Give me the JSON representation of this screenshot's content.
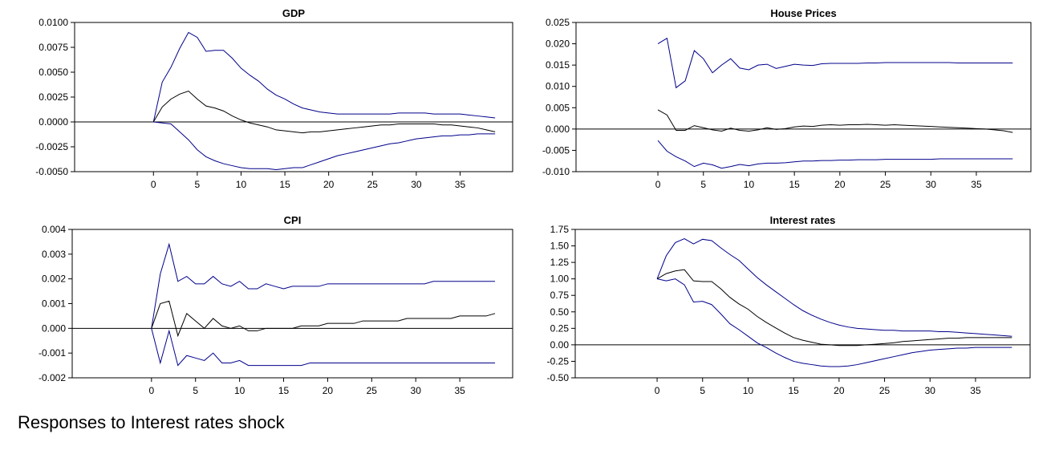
{
  "caption": "Responses to Interest rates shock",
  "colors": {
    "band": "#00008b",
    "response": "#000000",
    "zero_line": "#000000"
  },
  "chart_data": [
    {
      "type": "line",
      "title": "GDP",
      "xlabel": "",
      "ylabel": "",
      "xlim": [
        -9,
        41
      ],
      "ylim": [
        -0.005,
        0.01
      ],
      "xticks": [
        0,
        5,
        10,
        15,
        20,
        25,
        30,
        35
      ],
      "yticks": [
        -0.005,
        -0.0025,
        0.0,
        0.0025,
        0.005,
        0.0075,
        0.01
      ],
      "ytick_labels": [
        "-0.0050",
        "-0.0025",
        "0.0000",
        "0.0025",
        "0.0050",
        "0.0075",
        "0.0100"
      ],
      "zero_line": true,
      "x_start": 0,
      "series": [
        {
          "role": "upper",
          "values": [
            0.0,
            0.004,
            0.0055,
            0.0074,
            0.009,
            0.0085,
            0.0071,
            0.0072,
            0.0072,
            0.0064,
            0.0054,
            0.0047,
            0.0041,
            0.0033,
            0.0027,
            0.0023,
            0.0018,
            0.0014,
            0.0012,
            0.001,
            0.0009,
            0.0008,
            0.0008,
            0.0008,
            0.0008,
            0.0008,
            0.0008,
            0.0008,
            0.0009,
            0.0009,
            0.0009,
            0.0009,
            0.0008,
            0.0008,
            0.0008,
            0.0008,
            0.0007,
            0.0006,
            0.0005,
            0.0004
          ]
        },
        {
          "role": "response",
          "values": [
            0.0,
            0.0015,
            0.0023,
            0.0028,
            0.0031,
            0.0023,
            0.0016,
            0.0014,
            0.0011,
            0.0006,
            0.0002,
            -0.0001,
            -0.0003,
            -0.0005,
            -0.0008,
            -0.0009,
            -0.001,
            -0.0011,
            -0.001,
            -0.001,
            -0.0009,
            -0.0008,
            -0.0007,
            -0.0006,
            -0.0005,
            -0.0004,
            -0.0003,
            -0.0003,
            -0.0002,
            -0.0002,
            -0.0002,
            -0.0002,
            -0.0002,
            -0.0003,
            -0.0003,
            -0.0004,
            -0.0005,
            -0.0006,
            -0.0008,
            -0.001
          ]
        },
        {
          "role": "lower",
          "values": [
            0.0,
            -0.0001,
            -0.0002,
            -0.001,
            -0.0018,
            -0.0028,
            -0.0035,
            -0.0039,
            -0.0042,
            -0.0044,
            -0.0046,
            -0.0047,
            -0.0047,
            -0.0047,
            -0.0048,
            -0.0047,
            -0.0046,
            -0.0046,
            -0.0043,
            -0.004,
            -0.0037,
            -0.0034,
            -0.0032,
            -0.003,
            -0.0028,
            -0.0026,
            -0.0024,
            -0.0022,
            -0.0021,
            -0.0019,
            -0.0017,
            -0.0016,
            -0.0015,
            -0.0014,
            -0.0014,
            -0.0013,
            -0.0013,
            -0.0012,
            -0.0012,
            -0.0012
          ]
        }
      ]
    },
    {
      "type": "line",
      "title": "House Prices",
      "xlabel": "",
      "ylabel": "",
      "xlim": [
        -9,
        41
      ],
      "ylim": [
        -0.01,
        0.025
      ],
      "xticks": [
        0,
        5,
        10,
        15,
        20,
        25,
        30,
        35
      ],
      "yticks": [
        -0.01,
        -0.005,
        0.0,
        0.005,
        0.01,
        0.015,
        0.02,
        0.025
      ],
      "ytick_labels": [
        "-0.010",
        "-0.005",
        "0.000",
        "0.005",
        "0.010",
        "0.015",
        "0.020",
        "0.025"
      ],
      "zero_line": true,
      "x_start": 0,
      "series": [
        {
          "role": "upper",
          "values": [
            0.02,
            0.0213,
            0.0097,
            0.0113,
            0.0184,
            0.0165,
            0.0132,
            0.015,
            0.0165,
            0.0143,
            0.0139,
            0.015,
            0.0152,
            0.0142,
            0.0147,
            0.0152,
            0.015,
            0.0149,
            0.0153,
            0.0154,
            0.0154,
            0.0154,
            0.0154,
            0.0155,
            0.0155,
            0.0156,
            0.0156,
            0.0156,
            0.0156,
            0.0156,
            0.0156,
            0.0156,
            0.0156,
            0.0155,
            0.0155,
            0.0155,
            0.0155,
            0.0155,
            0.0155,
            0.0155
          ]
        },
        {
          "role": "response",
          "values": [
            0.0045,
            0.0033,
            -0.0003,
            -0.0003,
            0.0008,
            0.0003,
            -0.0002,
            -0.0005,
            0.0002,
            -0.0003,
            -0.0005,
            -0.0002,
            0.0003,
            -0.0001,
            0.0001,
            0.0005,
            0.0007,
            0.0006,
            0.0009,
            0.001,
            0.0009,
            0.001,
            0.001,
            0.0011,
            0.001,
            0.0009,
            0.001,
            0.0009,
            0.0008,
            0.0007,
            0.0006,
            0.0005,
            0.0004,
            0.0003,
            0.0002,
            0.0001,
            0.0,
            -0.0002,
            -0.0004,
            -0.0008
          ]
        },
        {
          "role": "lower",
          "values": [
            -0.0027,
            -0.0052,
            -0.0065,
            -0.0075,
            -0.0088,
            -0.008,
            -0.0084,
            -0.0092,
            -0.0088,
            -0.0083,
            -0.0086,
            -0.0082,
            -0.008,
            -0.008,
            -0.0079,
            -0.0077,
            -0.0075,
            -0.0075,
            -0.0074,
            -0.0074,
            -0.0073,
            -0.0073,
            -0.0072,
            -0.0072,
            -0.0072,
            -0.0071,
            -0.0071,
            -0.0071,
            -0.0071,
            -0.0071,
            -0.0071,
            -0.007,
            -0.007,
            -0.007,
            -0.007,
            -0.007,
            -0.007,
            -0.007,
            -0.007,
            -0.007
          ]
        }
      ]
    },
    {
      "type": "line",
      "title": "CPI",
      "xlabel": "",
      "ylabel": "",
      "xlim": [
        -9,
        41
      ],
      "ylim": [
        -0.002,
        0.004
      ],
      "xticks": [
        0,
        5,
        10,
        15,
        20,
        25,
        30,
        35
      ],
      "yticks": [
        -0.002,
        -0.001,
        0.0,
        0.001,
        0.002,
        0.003,
        0.004
      ],
      "ytick_labels": [
        "-0.002",
        "-0.001",
        "0.000",
        "0.001",
        "0.002",
        "0.003",
        "0.004"
      ],
      "zero_line": true,
      "x_start": 0,
      "series": [
        {
          "role": "upper",
          "values": [
            0.0,
            0.0022,
            0.0034,
            0.0019,
            0.0021,
            0.0018,
            0.0018,
            0.0021,
            0.0018,
            0.0017,
            0.0019,
            0.0016,
            0.0016,
            0.0018,
            0.0017,
            0.0016,
            0.0017,
            0.0017,
            0.0017,
            0.0017,
            0.0018,
            0.0018,
            0.0018,
            0.0018,
            0.0018,
            0.0018,
            0.0018,
            0.0018,
            0.0018,
            0.0018,
            0.0018,
            0.0018,
            0.0019,
            0.0019,
            0.0019,
            0.0019,
            0.0019,
            0.0019,
            0.0019,
            0.0019
          ]
        },
        {
          "role": "response",
          "values": [
            0.0,
            0.001,
            0.0011,
            -0.0003,
            0.0006,
            0.0003,
            0.0,
            0.0004,
            0.0001,
            0.0,
            0.0001,
            -0.0001,
            -0.0001,
            0.0,
            0.0,
            0.0,
            0.0,
            0.0001,
            0.0001,
            0.0001,
            0.0002,
            0.0002,
            0.0002,
            0.0002,
            0.0003,
            0.0003,
            0.0003,
            0.0003,
            0.0003,
            0.0004,
            0.0004,
            0.0004,
            0.0004,
            0.0004,
            0.0004,
            0.0005,
            0.0005,
            0.0005,
            0.0005,
            0.0006
          ]
        },
        {
          "role": "lower",
          "values": [
            0.0,
            -0.0014,
            -0.0001,
            -0.0015,
            -0.0011,
            -0.0012,
            -0.0013,
            -0.001,
            -0.0014,
            -0.0014,
            -0.0013,
            -0.0015,
            -0.0015,
            -0.0015,
            -0.0015,
            -0.0015,
            -0.0015,
            -0.0015,
            -0.0014,
            -0.0014,
            -0.0014,
            -0.0014,
            -0.0014,
            -0.0014,
            -0.0014,
            -0.0014,
            -0.0014,
            -0.0014,
            -0.0014,
            -0.0014,
            -0.0014,
            -0.0014,
            -0.0014,
            -0.0014,
            -0.0014,
            -0.0014,
            -0.0014,
            -0.0014,
            -0.0014,
            -0.0014
          ]
        }
      ]
    },
    {
      "type": "line",
      "title": "Interest rates",
      "xlabel": "",
      "ylabel": "",
      "xlim": [
        -9,
        41
      ],
      "ylim": [
        -0.5,
        1.75
      ],
      "xticks": [
        0,
        5,
        10,
        15,
        20,
        25,
        30,
        35
      ],
      "yticks": [
        -0.5,
        -0.25,
        0.0,
        0.25,
        0.5,
        0.75,
        1.0,
        1.25,
        1.5,
        1.75
      ],
      "ytick_labels": [
        "-0.50",
        "-0.25",
        "0.00",
        "0.25",
        "0.50",
        "0.75",
        "1.00",
        "1.25",
        "1.50",
        "1.75"
      ],
      "zero_line": true,
      "x_start": 0,
      "series": [
        {
          "role": "upper",
          "values": [
            1.0,
            1.35,
            1.55,
            1.61,
            1.53,
            1.6,
            1.58,
            1.47,
            1.37,
            1.28,
            1.15,
            1.02,
            0.91,
            0.81,
            0.71,
            0.61,
            0.52,
            0.45,
            0.39,
            0.34,
            0.3,
            0.27,
            0.25,
            0.24,
            0.23,
            0.22,
            0.22,
            0.21,
            0.21,
            0.21,
            0.21,
            0.2,
            0.2,
            0.19,
            0.18,
            0.17,
            0.16,
            0.15,
            0.14,
            0.13
          ]
        },
        {
          "role": "response",
          "values": [
            1.0,
            1.08,
            1.12,
            1.14,
            0.97,
            0.96,
            0.96,
            0.85,
            0.72,
            0.62,
            0.54,
            0.43,
            0.34,
            0.26,
            0.18,
            0.11,
            0.07,
            0.04,
            0.01,
            0.0,
            -0.01,
            -0.01,
            -0.01,
            0.0,
            0.01,
            0.02,
            0.03,
            0.05,
            0.06,
            0.07,
            0.08,
            0.09,
            0.1,
            0.1,
            0.11,
            0.11,
            0.11,
            0.11,
            0.11,
            0.11
          ]
        },
        {
          "role": "lower",
          "values": [
            1.0,
            0.97,
            1.0,
            0.91,
            0.65,
            0.66,
            0.61,
            0.47,
            0.32,
            0.23,
            0.13,
            0.03,
            -0.04,
            -0.12,
            -0.19,
            -0.25,
            -0.28,
            -0.3,
            -0.32,
            -0.33,
            -0.33,
            -0.32,
            -0.3,
            -0.27,
            -0.24,
            -0.21,
            -0.18,
            -0.15,
            -0.12,
            -0.1,
            -0.08,
            -0.07,
            -0.06,
            -0.05,
            -0.05,
            -0.04,
            -0.04,
            -0.04,
            -0.04,
            -0.04
          ]
        }
      ]
    }
  ]
}
